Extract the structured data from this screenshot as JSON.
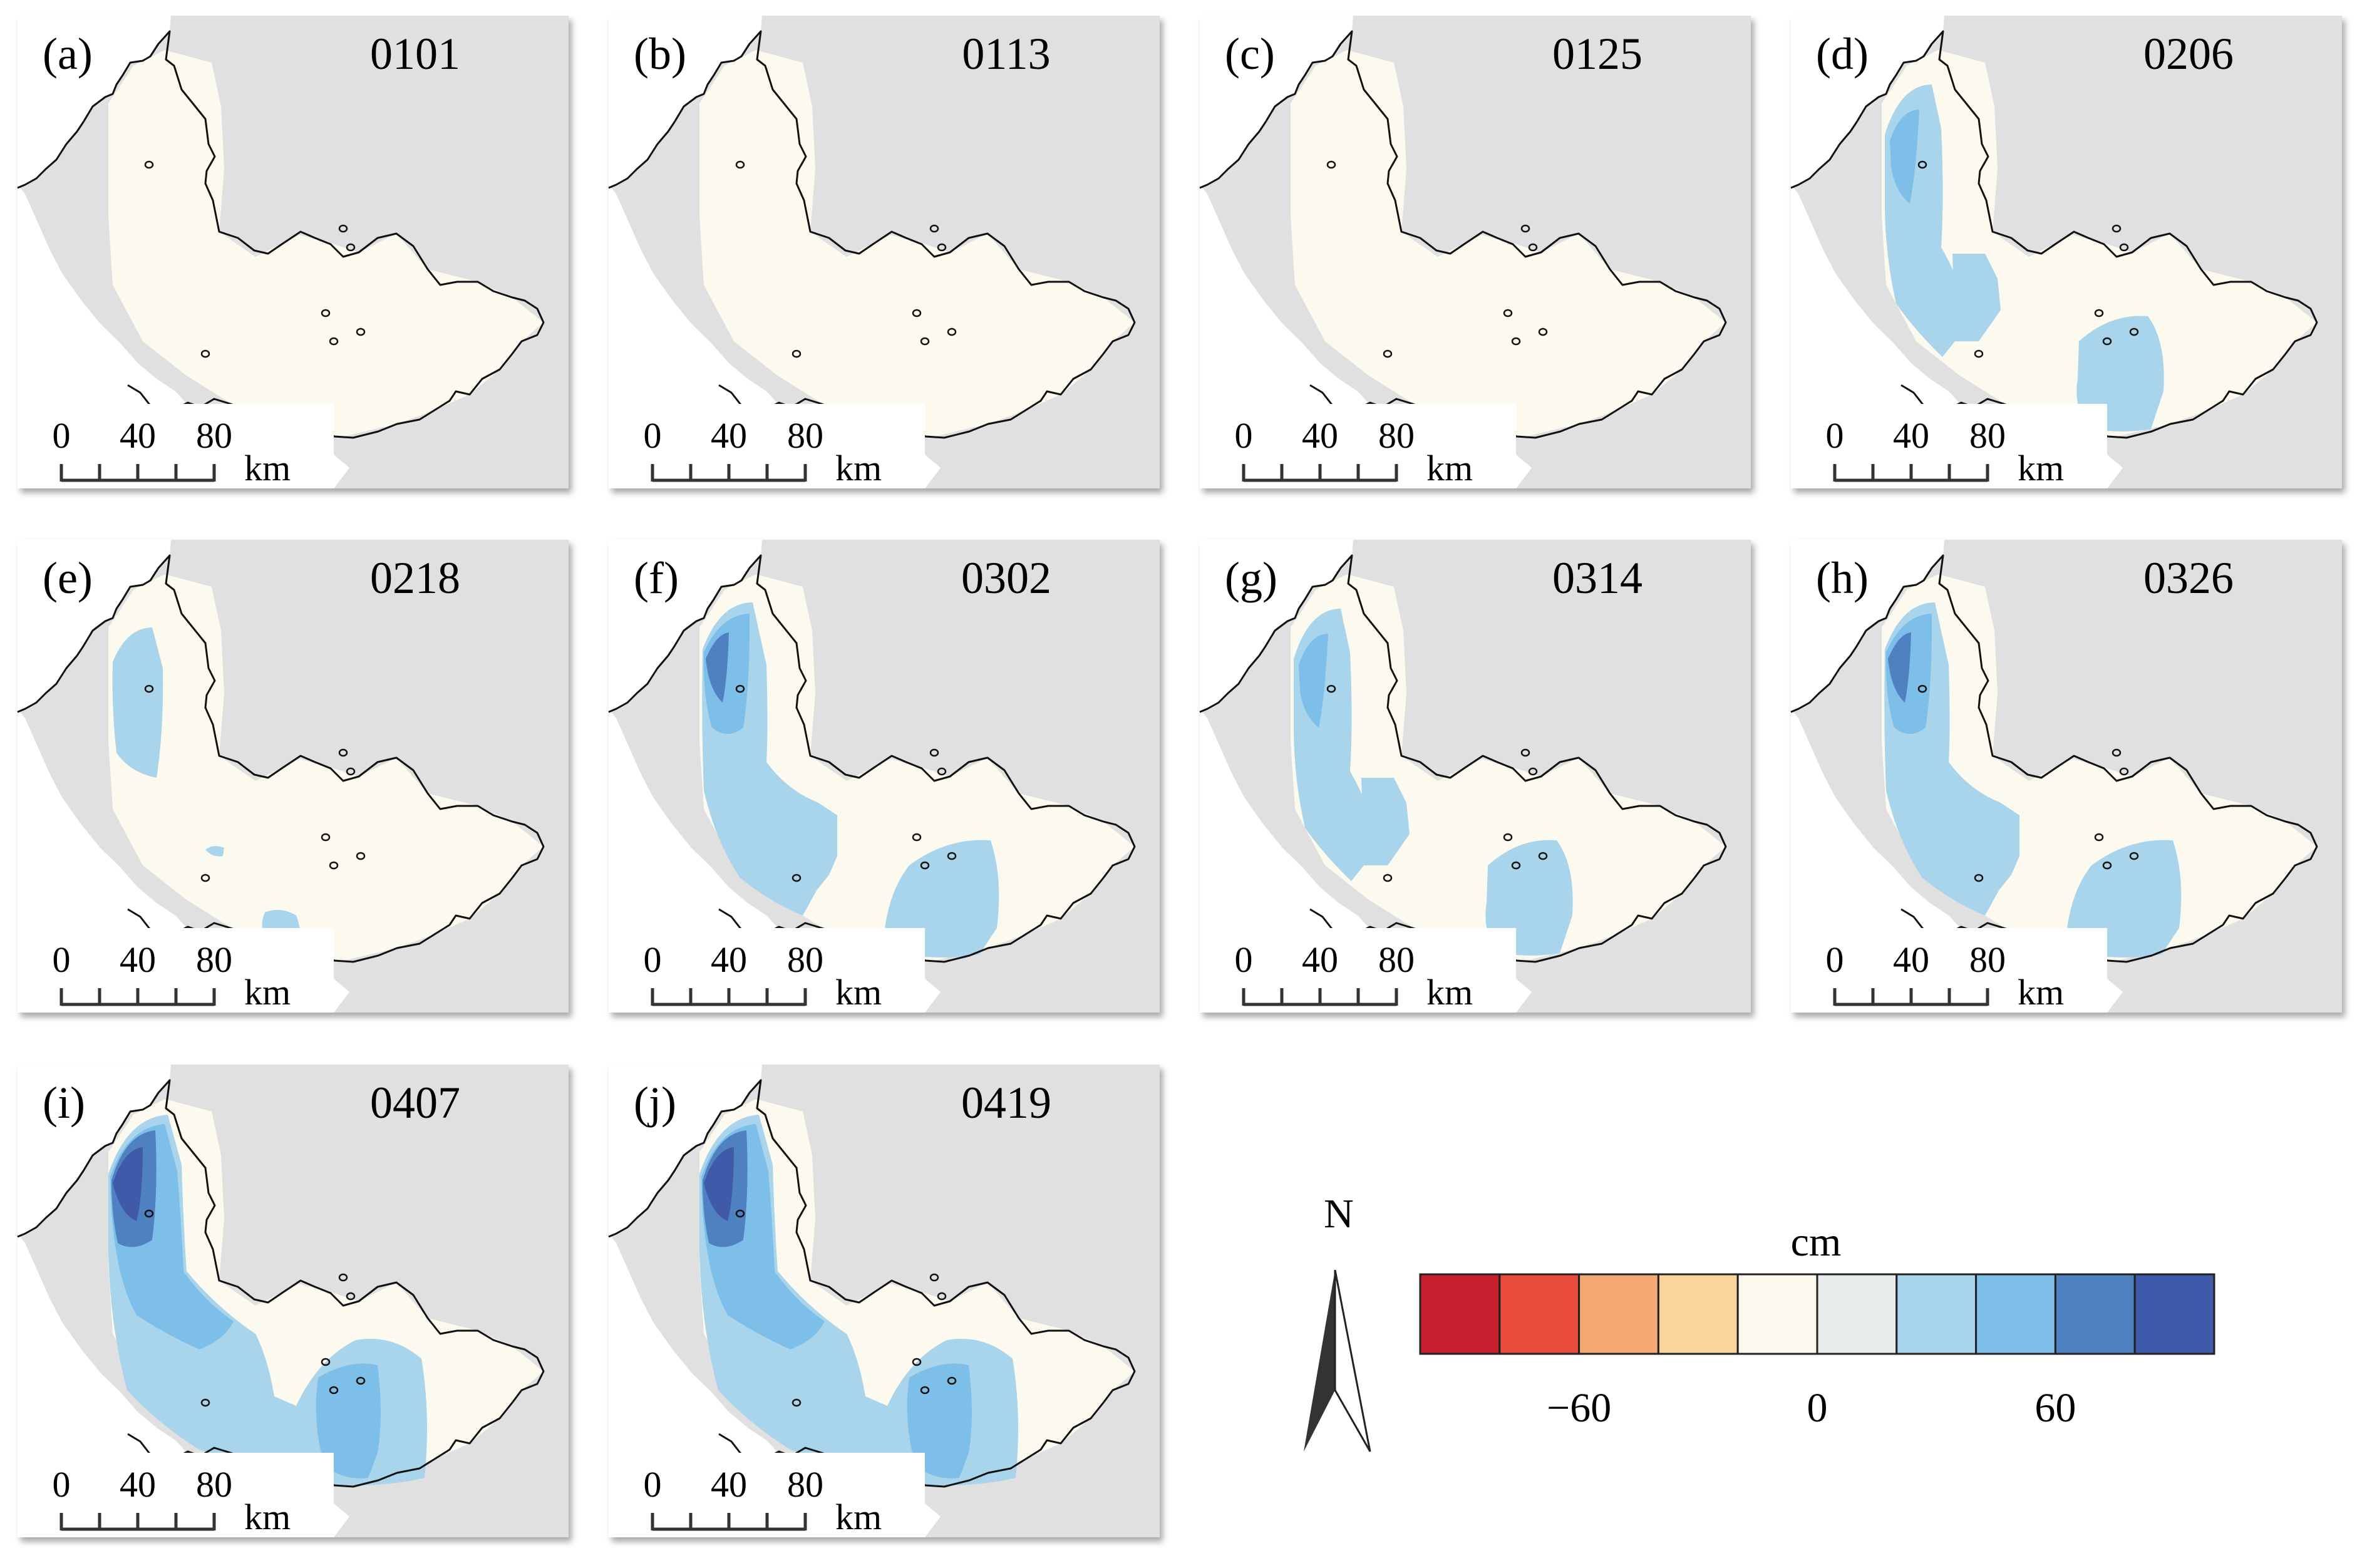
{
  "colors": {
    "background": "#e0e0e0",
    "sea": "#ffffff",
    "zero": "#fcf9ee",
    "coast": "#111111",
    "scale_bar": "#333333"
  },
  "panels": [
    {
      "letter": "(a)",
      "date": "0101",
      "level": 0
    },
    {
      "letter": "(b)",
      "date": "0113",
      "level": 0
    },
    {
      "letter": "(c)",
      "date": "0125",
      "level": 0
    },
    {
      "letter": "(d)",
      "date": "0206",
      "level": 2
    },
    {
      "letter": "(e)",
      "date": "0218",
      "level": 1
    },
    {
      "letter": "(f)",
      "date": "0302",
      "level": 3
    },
    {
      "letter": "(g)",
      "date": "0314",
      "level": 2
    },
    {
      "letter": "(h)",
      "date": "0326",
      "level": 3
    },
    {
      "letter": "(i)",
      "date": "0407",
      "level": 4
    },
    {
      "letter": "(j)",
      "date": "0419",
      "level": 4
    }
  ],
  "scale_bar": {
    "ticks": [
      "0",
      "40",
      "80"
    ],
    "unit": "km"
  },
  "north_arrow": {
    "label": "N"
  },
  "legend": {
    "unit": "cm",
    "colors": [
      "#c61f2d",
      "#e64b3c",
      "#f4a873",
      "#f9d49d",
      "#fcf9ee",
      "#e9ecec",
      "#a8d4ec",
      "#7dbfe8",
      "#4f81c0",
      "#3f5aa8"
    ],
    "tick_labels": [
      "−60",
      "0",
      "60"
    ],
    "tick_values": [
      -60,
      0,
      60
    ],
    "range": [
      -100,
      100
    ]
  }
}
